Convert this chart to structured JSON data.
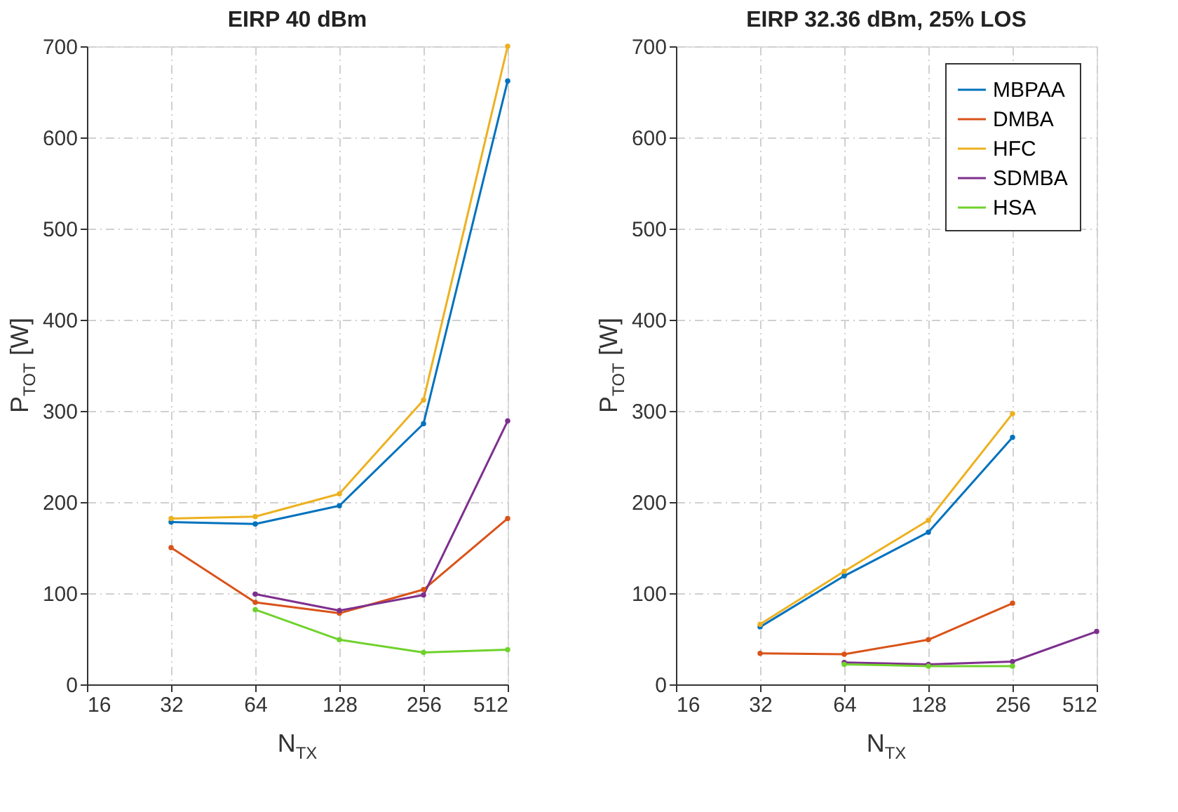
{
  "chart_data": [
    {
      "type": "line",
      "title": "EIRP 40 dBm",
      "xlabel": "N$_{TX}$",
      "ylabel": "P$_{TOT}$ [W]",
      "x": [
        32,
        64,
        128,
        256,
        512
      ],
      "log": "x",
      "xlim": [
        16,
        512
      ],
      "xticks": [
        16,
        32,
        64,
        128,
        256,
        512
      ],
      "ylim": [
        0,
        700
      ],
      "yticks": [
        0,
        100,
        200,
        300,
        400,
        500,
        600,
        700
      ],
      "grid": true,
      "marker": "circle",
      "line_style": "solid",
      "series": [
        {
          "color": "#0072bd",
          "values": [
            178,
            176,
            196,
            286,
            662
          ]
        },
        {
          "color": "#d95319",
          "values": [
            150,
            90,
            78,
            104,
            182
          ]
        },
        {
          "color": "#edb120",
          "values": [
            182,
            184,
            209,
            312,
            700
          ]
        },
        {
          "color": "#7e2f8e",
          "values": [
            null,
            99,
            81,
            98,
            289
          ]
        },
        {
          "color": "#6fd22c",
          "values": [
            null,
            82,
            49,
            35,
            38
          ]
        }
      ]
    },
    {
      "type": "line",
      "title": "EIRP 32.36 dBm, 25% LOS",
      "xlabel": "N$_{TX}$",
      "ylabel": "P$_{TOT}$ [W]",
      "x": [
        32,
        64,
        128,
        256,
        512
      ],
      "log": "x",
      "xlim": [
        16,
        512
      ],
      "xticks": [
        16,
        32,
        64,
        128,
        256,
        512
      ],
      "ylim": [
        0,
        700
      ],
      "yticks": [
        0,
        100,
        200,
        300,
        400,
        500,
        600,
        700
      ],
      "grid": true,
      "legend": "top right",
      "marker": "circle",
      "line_style": "solid",
      "series": [
        {
          "name": "MBPAA",
          "color": "#0072bd",
          "values": [
            63,
            119,
            167,
            271,
            null
          ]
        },
        {
          "name": "DMBA",
          "color": "#d95319",
          "values": [
            34,
            33,
            49,
            89,
            null
          ]
        },
        {
          "name": "HFC",
          "color": "#edb120",
          "values": [
            66,
            124,
            180,
            297,
            null
          ]
        },
        {
          "name": "SDMBA",
          "color": "#7e2f8e",
          "values": [
            null,
            24,
            22,
            25,
            58
          ]
        },
        {
          "name": "HSA",
          "color": "#6fd22c",
          "values": [
            null,
            22,
            20,
            20,
            null
          ]
        }
      ]
    }
  ]
}
